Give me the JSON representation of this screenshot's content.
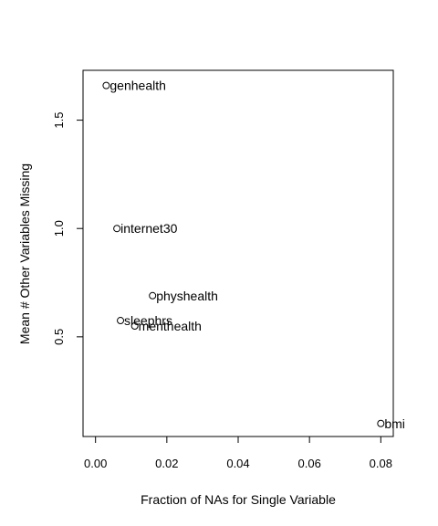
{
  "chart_data": {
    "type": "scatter",
    "title": "",
    "xlabel": "Fraction of NAs for Single Variable",
    "ylabel": "Mean # Other Variables Missing",
    "xlim": [
      -0.0035,
      0.0835
    ],
    "ylim": [
      0.04,
      1.73
    ],
    "x_ticks": [
      0.0,
      0.02,
      0.04,
      0.06,
      0.08
    ],
    "x_tick_labels": [
      "0.00",
      "0.02",
      "0.04",
      "0.06",
      "0.08"
    ],
    "y_ticks": [
      0.5,
      1.0,
      1.5
    ],
    "y_tick_labels": [
      "0.5",
      "1.0",
      "1.5"
    ],
    "grid": false,
    "marker": "open-circle",
    "points": [
      {
        "label": "genhealth",
        "x": 0.003,
        "y": 1.66
      },
      {
        "label": "internet30",
        "x": 0.006,
        "y": 1.0
      },
      {
        "label": "physhealth",
        "x": 0.016,
        "y": 0.69
      },
      {
        "label": "sleephrs",
        "x": 0.007,
        "y": 0.575
      },
      {
        "label": "menthealth",
        "x": 0.011,
        "y": 0.55
      },
      {
        "label": "bmi",
        "x": 0.08,
        "y": 0.1
      }
    ]
  }
}
